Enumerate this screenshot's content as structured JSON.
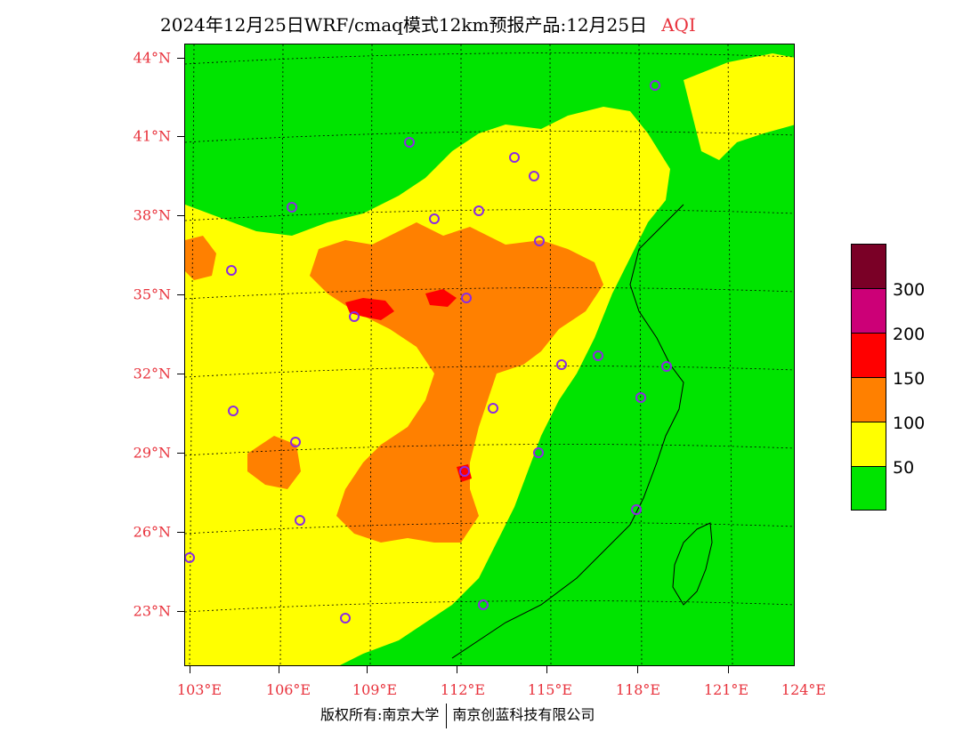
{
  "title": {
    "main": "2024年12月25日WRF/cmaq模式12km预报产品:12月25日",
    "product": "AQI"
  },
  "lat_labels": [
    "44°N",
    "41°N",
    "38°N",
    "35°N",
    "32°N",
    "29°N",
    "26°N",
    "23°N"
  ],
  "lon_labels": [
    "103°E",
    "106°E",
    "109°E",
    "112°E",
    "115°E",
    "118°E",
    "121°E",
    "124°E"
  ],
  "legend": {
    "colors": [
      "#7a0026",
      "#cc0077",
      "#ff0000",
      "#ff8000",
      "#ffff00",
      "#00e400"
    ],
    "labels": [
      "300",
      "200",
      "150",
      "100",
      "50"
    ]
  },
  "footer": {
    "copyright": "版权所有:南京大学",
    "company": "南京创蓝科技有限公司"
  },
  "map_colors": {
    "good": "#00e400",
    "moderate": "#ffff00",
    "unhealthy_sensitive": "#ff8000",
    "unhealthy": "#ff0000",
    "city_marker": "#8b2be2"
  }
}
